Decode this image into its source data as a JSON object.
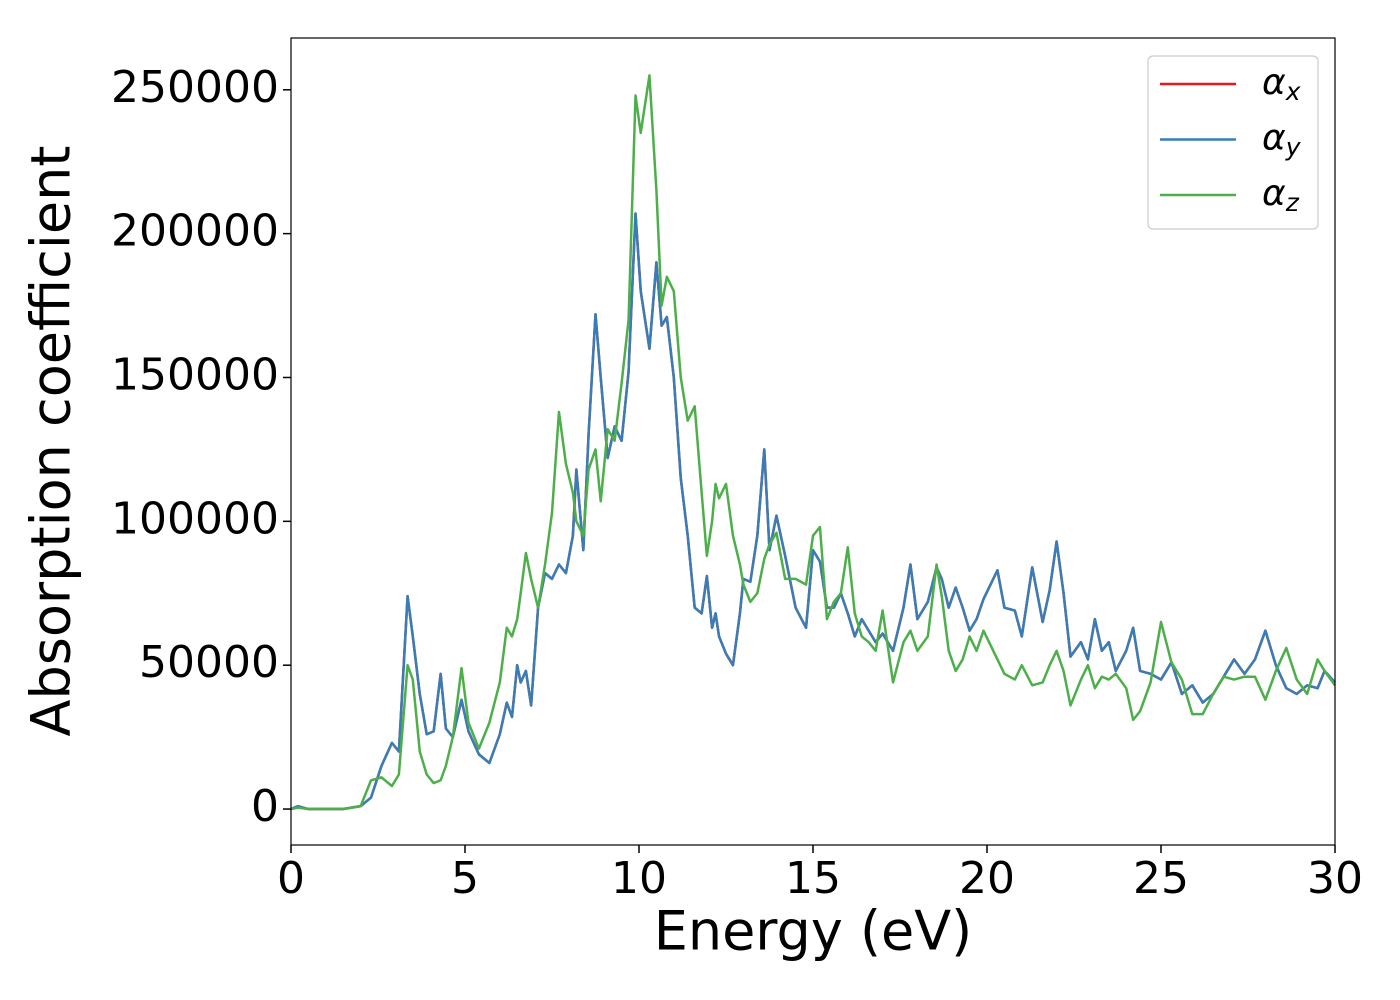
{
  "chart_data": {
    "type": "line",
    "x_label": "Energy (eV)",
    "y_label": "Absorption coefficient",
    "xlim": [
      0,
      30
    ],
    "ylim": [
      -12500,
      268000
    ],
    "xticks": [
      0,
      5,
      10,
      15,
      20,
      25,
      30
    ],
    "yticks": [
      0,
      50000,
      100000,
      150000,
      200000,
      250000
    ],
    "legend": "upper right",
    "x": [
      0,
      0.2,
      0.5,
      1,
      1.5,
      2,
      2.3,
      2.6,
      2.9,
      3.1,
      3.35,
      3.5,
      3.7,
      3.9,
      4.1,
      4.3,
      4.45,
      4.65,
      4.9,
      5.1,
      5.4,
      5.7,
      6,
      6.2,
      6.35,
      6.5,
      6.6,
      6.75,
      6.9,
      7.1,
      7.3,
      7.5,
      7.7,
      7.9,
      8.1,
      8.2,
      8.4,
      8.55,
      8.75,
      8.9,
      9.1,
      9.3,
      9.5,
      9.7,
      9.9,
      10.05,
      10.3,
      10.5,
      10.65,
      10.8,
      11,
      11.2,
      11.4,
      11.6,
      11.8,
      11.95,
      12.1,
      12.2,
      12.3,
      12.5,
      12.7,
      12.9,
      13,
      13.2,
      13.4,
      13.6,
      13.75,
      13.95,
      14.2,
      14.5,
      14.8,
      15,
      15.2,
      15.4,
      15.6,
      15.8,
      16,
      16.2,
      16.4,
      16.6,
      16.8,
      17,
      17.3,
      17.6,
      17.8,
      18,
      18.3,
      18.55,
      18.7,
      18.9,
      19.1,
      19.3,
      19.5,
      19.7,
      19.9,
      20.3,
      20.5,
      20.8,
      21,
      21.3,
      21.6,
      21.8,
      22,
      22.2,
      22.4,
      22.7,
      22.9,
      23.1,
      23.3,
      23.5,
      23.7,
      24,
      24.2,
      24.4,
      24.7,
      25,
      25.3,
      25.6,
      25.9,
      26.2,
      26.5,
      26.8,
      27.1,
      27.4,
      27.7,
      28,
      28.3,
      28.6,
      28.9,
      29.2,
      29.5,
      29.7,
      30
    ],
    "series": [
      {
        "name": "αx",
        "color": "#e41a1c",
        "values": [
          0,
          1000,
          0,
          0,
          0,
          1000,
          4000,
          15000,
          23000,
          20000,
          74000,
          60000,
          40000,
          26000,
          27000,
          47000,
          28000,
          25000,
          38000,
          27000,
          19000,
          16000,
          26000,
          37000,
          32000,
          50000,
          44000,
          48000,
          36000,
          70000,
          82000,
          80000,
          85000,
          82000,
          95000,
          118000,
          90000,
          130000,
          172000,
          150000,
          122000,
          133000,
          128000,
          152000,
          207000,
          180000,
          160000,
          190000,
          168000,
          171000,
          150000,
          115000,
          95000,
          70000,
          68000,
          81000,
          63000,
          68000,
          60000,
          54000,
          50000,
          68000,
          80000,
          79000,
          95000,
          125000,
          90000,
          102000,
          88000,
          70000,
          63000,
          90000,
          86000,
          70000,
          70000,
          75000,
          68000,
          60000,
          66000,
          62000,
          58000,
          61000,
          55000,
          70000,
          85000,
          66000,
          72000,
          84000,
          80000,
          70000,
          77000,
          70000,
          62000,
          66000,
          73000,
          83000,
          70000,
          69000,
          60000,
          84000,
          65000,
          76000,
          93000,
          75000,
          53000,
          58000,
          52000,
          66000,
          55000,
          58000,
          48000,
          55000,
          63000,
          48000,
          47000,
          45000,
          51000,
          40000,
          43000,
          37000,
          40000,
          46000,
          52000,
          47000,
          52000,
          62000,
          50000,
          42000,
          40000,
          43000,
          42000,
          48000,
          44000
        ]
      },
      {
        "name": "αy",
        "color": "#377eb8",
        "values": [
          0,
          1000,
          0,
          0,
          0,
          1000,
          4000,
          15000,
          23000,
          20000,
          74000,
          60000,
          40000,
          26000,
          27000,
          47000,
          28000,
          25000,
          38000,
          27000,
          19000,
          16000,
          26000,
          37000,
          32000,
          50000,
          44000,
          48000,
          36000,
          70000,
          82000,
          80000,
          85000,
          82000,
          95000,
          118000,
          90000,
          130000,
          172000,
          150000,
          122000,
          133000,
          128000,
          152000,
          207000,
          180000,
          160000,
          190000,
          168000,
          171000,
          150000,
          115000,
          95000,
          70000,
          68000,
          81000,
          63000,
          68000,
          60000,
          54000,
          50000,
          68000,
          80000,
          79000,
          95000,
          125000,
          90000,
          102000,
          88000,
          70000,
          63000,
          90000,
          86000,
          70000,
          70000,
          75000,
          68000,
          60000,
          66000,
          62000,
          58000,
          61000,
          55000,
          70000,
          85000,
          66000,
          72000,
          84000,
          80000,
          70000,
          77000,
          70000,
          62000,
          66000,
          73000,
          83000,
          70000,
          69000,
          60000,
          84000,
          65000,
          76000,
          93000,
          75000,
          53000,
          58000,
          52000,
          66000,
          55000,
          58000,
          48000,
          55000,
          63000,
          48000,
          47000,
          45000,
          51000,
          40000,
          43000,
          37000,
          40000,
          46000,
          52000,
          47000,
          52000,
          62000,
          50000,
          42000,
          40000,
          43000,
          42000,
          48000,
          44000
        ]
      },
      {
        "name": "αz",
        "color": "#4daf4a",
        "values": [
          0,
          500,
          0,
          0,
          0,
          1000,
          10000,
          11000,
          8000,
          12000,
          50000,
          45000,
          20000,
          12000,
          9000,
          10000,
          15000,
          25000,
          49000,
          30000,
          21000,
          30000,
          44000,
          63000,
          60000,
          66000,
          75000,
          89000,
          80000,
          70000,
          85000,
          103000,
          138000,
          120000,
          110000,
          100000,
          95000,
          118000,
          125000,
          107000,
          132000,
          128000,
          148000,
          170000,
          248000,
          235000,
          255000,
          215000,
          175000,
          185000,
          180000,
          150000,
          135000,
          140000,
          110000,
          88000,
          100000,
          113000,
          108000,
          113000,
          95000,
          85000,
          78000,
          72000,
          75000,
          87000,
          92000,
          96000,
          80000,
          80000,
          78000,
          95000,
          98000,
          66000,
          72000,
          75000,
          91000,
          68000,
          60000,
          58000,
          55000,
          69000,
          44000,
          58000,
          62000,
          55000,
          60000,
          85000,
          74000,
          55000,
          48000,
          52000,
          60000,
          55000,
          62000,
          52000,
          47000,
          45000,
          50000,
          43000,
          44000,
          50000,
          55000,
          48000,
          36000,
          45000,
          50000,
          42000,
          46000,
          45000,
          47000,
          42000,
          31000,
          34000,
          44000,
          65000,
          51000,
          45000,
          33000,
          33000,
          40000,
          46000,
          45000,
          46000,
          46000,
          38000,
          48000,
          56000,
          45000,
          40000,
          52000,
          48000,
          43000
        ]
      }
    ]
  }
}
